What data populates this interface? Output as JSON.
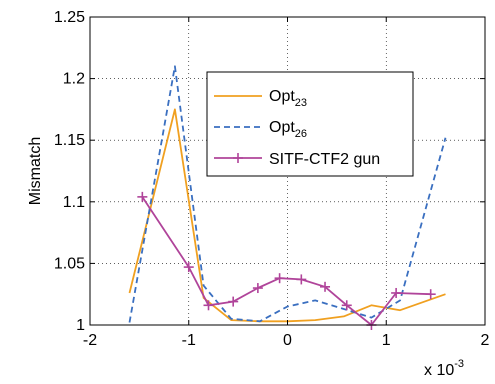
{
  "chart_data": {
    "type": "line",
    "title": "",
    "xlabel": "",
    "ylabel": "Mismatch",
    "x_multiplier_label": "x 10",
    "x_multiplier_exp": "-3",
    "xlim": [
      -2,
      2
    ],
    "ylim": [
      1,
      1.25
    ],
    "xticks": [
      -2,
      -1,
      0,
      1,
      2
    ],
    "xtick_labels": [
      "-2",
      "-1",
      "0",
      "1",
      "2"
    ],
    "yticks": [
      1,
      1.05,
      1.1,
      1.15,
      1.2,
      1.25
    ],
    "ytick_labels": [
      "1",
      "1.05",
      "1.1",
      "1.15",
      "1.2",
      "1.25"
    ],
    "grid": true,
    "legend_position": "top-right",
    "series": [
      {
        "name": "Opt",
        "name_sub": "23",
        "color": "#f0a020",
        "style": "solid",
        "marker": "none",
        "points": [
          [
            -1.6,
            1.026
          ],
          [
            -1.14,
            1.175
          ],
          [
            -0.85,
            1.022
          ],
          [
            -0.57,
            1.004
          ],
          [
            -0.28,
            1.003
          ],
          [
            0.0,
            1.003
          ],
          [
            0.28,
            1.004
          ],
          [
            0.57,
            1.007
          ],
          [
            0.85,
            1.016
          ],
          [
            1.14,
            1.012
          ],
          [
            1.6,
            1.025
          ]
        ]
      },
      {
        "name": "Opt",
        "name_sub": "26",
        "color": "#3a6fc0",
        "style": "dashed",
        "marker": "none",
        "points": [
          [
            -1.6,
            1.002
          ],
          [
            -1.14,
            1.21
          ],
          [
            -0.85,
            1.032
          ],
          [
            -0.57,
            1.005
          ],
          [
            -0.28,
            1.003
          ],
          [
            0.0,
            1.015
          ],
          [
            0.28,
            1.02
          ],
          [
            0.57,
            1.013
          ],
          [
            0.85,
            1.006
          ],
          [
            1.14,
            1.02
          ],
          [
            1.6,
            1.152
          ]
        ]
      },
      {
        "name": "SITF-CTF2 gun",
        "name_sub": "",
        "color": "#b0449a",
        "style": "solid",
        "marker": "plus",
        "points": [
          [
            -1.47,
            1.104
          ],
          [
            -1.0,
            1.047
          ],
          [
            -0.8,
            1.016
          ],
          [
            -0.55,
            1.019
          ],
          [
            -0.3,
            1.03
          ],
          [
            -0.08,
            1.038
          ],
          [
            0.14,
            1.037
          ],
          [
            0.38,
            1.031
          ],
          [
            0.6,
            1.016
          ],
          [
            0.85,
            1.0
          ],
          [
            1.1,
            1.026
          ],
          [
            1.45,
            1.025
          ]
        ]
      }
    ]
  }
}
